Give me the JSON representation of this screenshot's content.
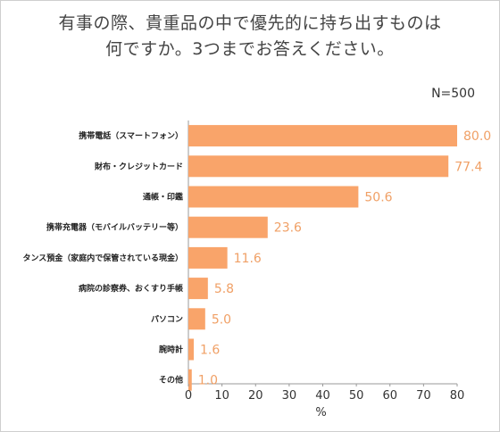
{
  "chart_data": {
    "type": "bar",
    "orientation": "horizontal",
    "title_lines": [
      "有事の際、貴重品の中で優先的に持ち出すものは",
      "何ですか。3つまでお答えください。"
    ],
    "n_label": "N=500",
    "categories": [
      "携帯電話（スマートフォン）",
      "財布・クレジットカード",
      "通帳・印鑑",
      "携帯充電器（モバイルバッテリー等）",
      "タンス預金（家庭内で保管されている現金）",
      "病院の診察券、おくすり手帳",
      "パソコン",
      "腕時計",
      "その他"
    ],
    "values": [
      80.0,
      77.4,
      50.6,
      23.6,
      11.6,
      5.8,
      5.0,
      1.6,
      1.0
    ],
    "value_labels": [
      "80.0",
      "77.4",
      "50.6",
      "23.6",
      "11.6",
      "5.8",
      "5.0",
      "1.6",
      "1.0"
    ],
    "xlim": [
      0,
      80
    ],
    "xticks": [
      0,
      10,
      20,
      30,
      40,
      50,
      60,
      70,
      80
    ],
    "xlabel": "%",
    "bar_color": "#f9a46a",
    "value_label_color": "#f0a066",
    "grid": false,
    "legend": false
  }
}
